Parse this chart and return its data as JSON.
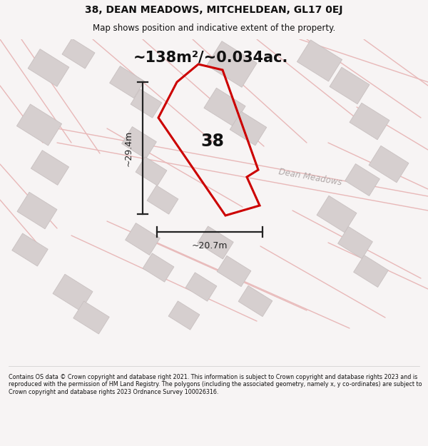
{
  "title": "38, DEAN MEADOWS, MITCHELDEAN, GL17 0EJ",
  "subtitle": "Map shows position and indicative extent of the property.",
  "area_text": "~138m²/~0.034ac.",
  "width_text": "~20.7m",
  "height_text": "~29.4m",
  "number_label": "38",
  "street_label": "Dean Meadows",
  "footer": "Contains OS data © Crown copyright and database right 2021. This information is subject to Crown copyright and database rights 2023 and is reproduced with the permission of HM Land Registry. The polygons (including the associated geometry, namely x, y co-ordinates) are subject to Crown copyright and database rights 2023 Ordnance Survey 100026316.",
  "bg_color": "#f7f4f4",
  "road_color": "#e8b8b8",
  "building_fill": "#d6cfcf",
  "building_edge": "#c8c0c0",
  "plot_color": "#cc0000",
  "dim_color": "#222222",
  "title_color": "#111111",
  "footer_color": "#111111",
  "map_bg": "#f5f1f1",
  "road_lw": 1.0,
  "plot_lw": 2.2
}
